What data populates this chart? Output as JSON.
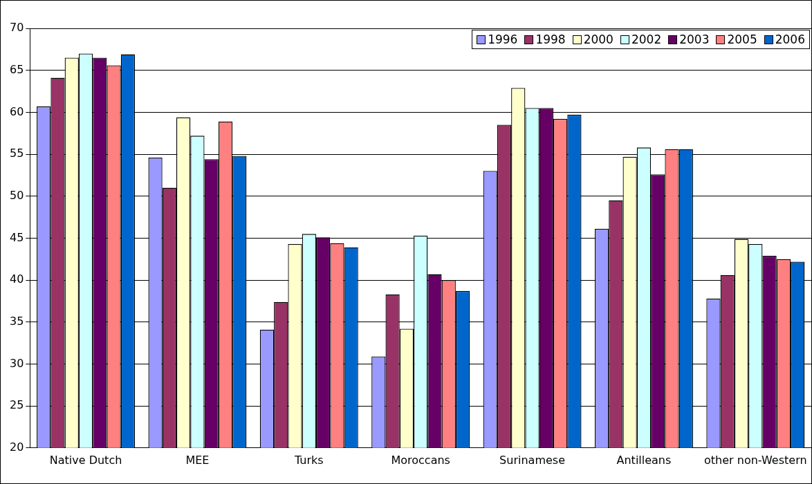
{
  "chart_data": {
    "type": "bar",
    "categories": [
      "Native Dutch",
      "MEE",
      "Turks",
      "Moroccans",
      "Surinamese",
      "Antilleans",
      "other non-Western"
    ],
    "series": [
      {
        "name": "1996",
        "color": "#9999ff",
        "values": [
          60.7,
          54.6,
          34.1,
          30.9,
          53.0,
          46.1,
          37.8
        ]
      },
      {
        "name": "1998",
        "color": "#993366",
        "values": [
          64.1,
          51.0,
          37.4,
          38.3,
          58.5,
          49.5,
          40.6
        ]
      },
      {
        "name": "2000",
        "color": "#ffffcc",
        "values": [
          66.5,
          59.4,
          44.3,
          34.2,
          62.9,
          54.7,
          44.9
        ]
      },
      {
        "name": "2002",
        "color": "#ccffff",
        "values": [
          67.0,
          57.2,
          45.5,
          45.3,
          60.5,
          55.8,
          44.3
        ]
      },
      {
        "name": "2003",
        "color": "#660066",
        "values": [
          66.5,
          54.4,
          45.1,
          40.7,
          60.5,
          52.6,
          42.9
        ]
      },
      {
        "name": "2005",
        "color": "#ff8080",
        "values": [
          65.6,
          58.9,
          44.4,
          40.0,
          59.2,
          55.6,
          42.5
        ]
      },
      {
        "name": "2006",
        "color": "#0066cc",
        "values": [
          66.9,
          54.8,
          43.9,
          38.7,
          59.7,
          55.6,
          42.2
        ]
      }
    ],
    "ylim": [
      20,
      70
    ],
    "yticks": [
      20,
      25,
      30,
      35,
      40,
      45,
      50,
      55,
      60,
      65,
      70
    ],
    "grid": "y",
    "legend": "top right"
  }
}
